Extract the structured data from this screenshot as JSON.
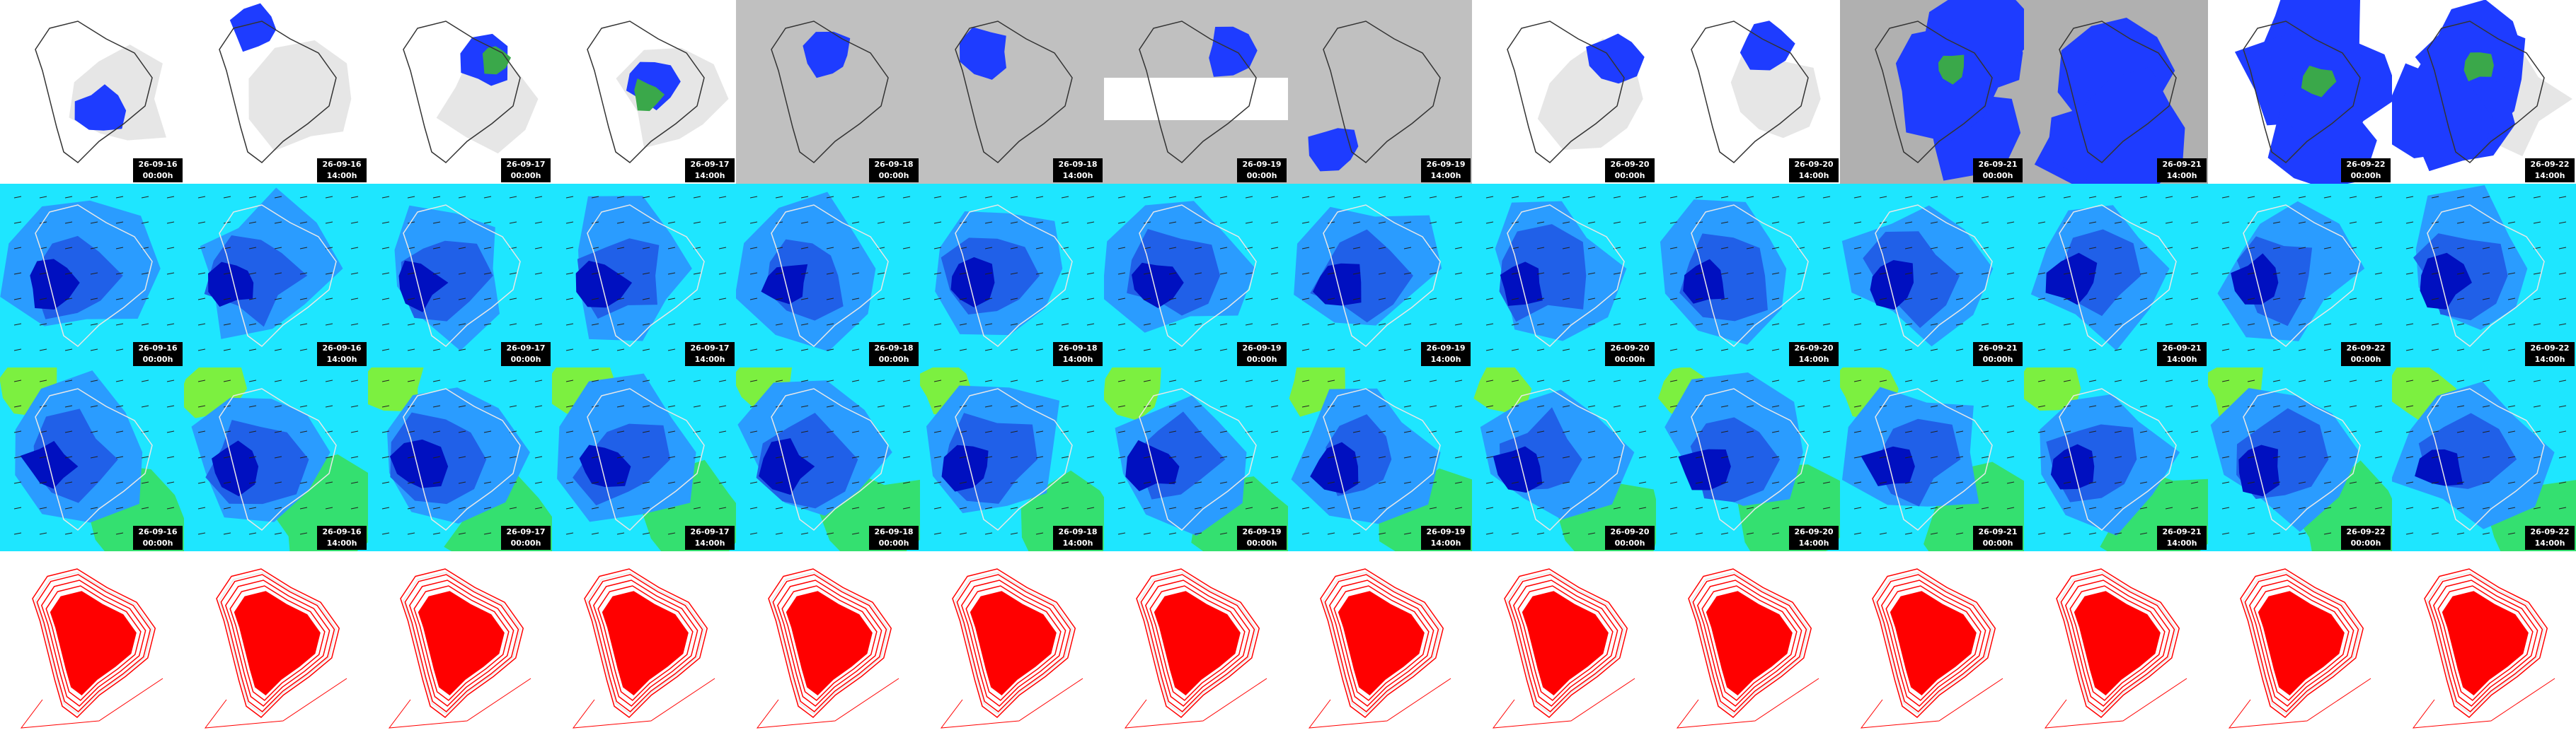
{
  "columns": [
    {
      "date": "26-09-16",
      "time": "00:00h"
    },
    {
      "date": "26-09-16",
      "time": "14:00h"
    },
    {
      "date": "26-09-17",
      "time": "00:00h"
    },
    {
      "date": "26-09-17",
      "time": "14:00h"
    },
    {
      "date": "26-09-18",
      "time": "00:00h"
    },
    {
      "date": "26-09-18",
      "time": "14:00h"
    },
    {
      "date": "26-09-19",
      "time": "00:00h"
    },
    {
      "date": "26-09-19",
      "time": "14:00h"
    },
    {
      "date": "26-09-20",
      "time": "00:00h"
    },
    {
      "date": "26-09-20",
      "time": "14:00h"
    },
    {
      "date": "26-09-21",
      "time": "00:00h"
    },
    {
      "date": "26-09-21",
      "time": "14:00h"
    },
    {
      "date": "26-09-22",
      "time": "00:00h"
    },
    {
      "date": "26-09-22",
      "time": "14:00h"
    }
  ]
}
